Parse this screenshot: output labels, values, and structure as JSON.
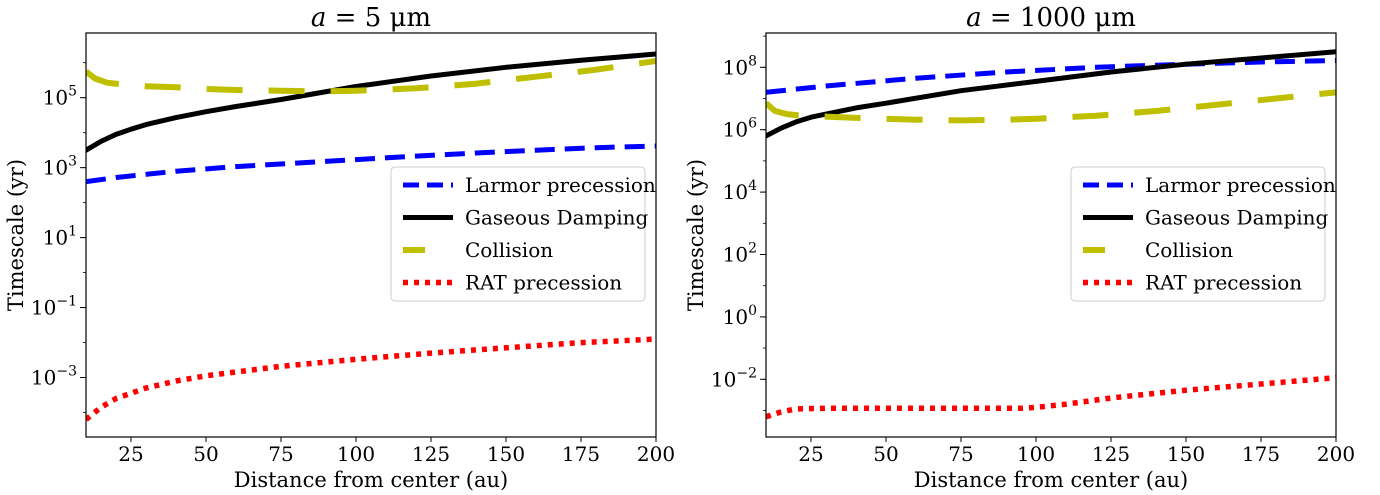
{
  "chart_data": [
    {
      "type": "line",
      "title": "a = 5 μm",
      "title_var": "a",
      "title_rest": " = 5 μm",
      "xlabel": "Distance from center (au)",
      "ylabel": "Timescale (yr)",
      "xlim": [
        10,
        200
      ],
      "ylog": true,
      "ylim_log10": [
        -4.7,
        6.85
      ],
      "xticks": [
        25,
        50,
        75,
        100,
        125,
        150,
        175,
        200
      ],
      "yticks": [
        {
          "mantissa": "10",
          "exp": "5",
          "log10": 5
        },
        {
          "mantissa": "10",
          "exp": "3",
          "log10": 3
        },
        {
          "mantissa": "10",
          "exp": "1",
          "log10": 1
        },
        {
          "mantissa": "10",
          "exp": "−1",
          "log10": -1
        },
        {
          "mantissa": "10",
          "exp": "−3",
          "log10": -3
        }
      ],
      "legend_position": "center-right",
      "series": [
        {
          "name": "Larmor precession",
          "color": "#0000ff",
          "style": "dashed",
          "x": [
            10,
            20,
            40,
            60,
            80,
            100,
            120,
            140,
            160,
            180,
            200
          ],
          "log10_y": [
            2.6,
            2.72,
            2.9,
            3.03,
            3.13,
            3.23,
            3.33,
            3.42,
            3.5,
            3.57,
            3.62
          ]
        },
        {
          "name": "Gaseous Damping",
          "color": "#000000",
          "style": "solid",
          "x": [
            10,
            15,
            20,
            25,
            30,
            40,
            50,
            60,
            75,
            100,
            125,
            150,
            175,
            200
          ],
          "log10_y": [
            3.5,
            3.75,
            3.95,
            4.1,
            4.23,
            4.43,
            4.6,
            4.75,
            4.95,
            5.32,
            5.62,
            5.87,
            6.07,
            6.25
          ]
        },
        {
          "name": "Collision",
          "color": "#bfbf00",
          "style": "longdash",
          "x": [
            10,
            13,
            17,
            22,
            30,
            40,
            50,
            60,
            75,
            90,
            100,
            120,
            140,
            160,
            180,
            200
          ],
          "log10_y": [
            5.75,
            5.55,
            5.43,
            5.38,
            5.33,
            5.3,
            5.25,
            5.22,
            5.2,
            5.18,
            5.2,
            5.27,
            5.4,
            5.6,
            5.8,
            6.05
          ]
        },
        {
          "name": "RAT precession",
          "color": "#ff0000",
          "style": "dotted",
          "x": [
            10,
            15,
            20,
            30,
            40,
            50,
            75,
            100,
            125,
            150,
            175,
            200
          ],
          "log10_y": [
            -4.2,
            -3.85,
            -3.6,
            -3.3,
            -3.1,
            -2.95,
            -2.68,
            -2.48,
            -2.3,
            -2.15,
            -2.0,
            -1.9
          ]
        }
      ]
    },
    {
      "type": "line",
      "title": "a = 1000 μm",
      "title_var": "a",
      "title_rest": " = 1000 μm",
      "xlabel": "Distance from center (au)",
      "ylabel": "Timescale (yr)",
      "xlim": [
        10,
        200
      ],
      "ylog": true,
      "ylim_log10": [
        -3.85,
        9.1
      ],
      "xticks": [
        25,
        50,
        75,
        100,
        125,
        150,
        175,
        200
      ],
      "yticks": [
        {
          "mantissa": "10",
          "exp": "8",
          "log10": 8
        },
        {
          "mantissa": "10",
          "exp": "6",
          "log10": 6
        },
        {
          "mantissa": "10",
          "exp": "4",
          "log10": 4
        },
        {
          "mantissa": "10",
          "exp": "2",
          "log10": 2
        },
        {
          "mantissa": "10",
          "exp": "0",
          "log10": 0
        },
        {
          "mantissa": "10",
          "exp": "−2",
          "log10": -2
        }
      ],
      "legend_position": "center-right",
      "series": [
        {
          "name": "Larmor precession",
          "color": "#0000ff",
          "style": "dashed",
          "x": [
            10,
            30,
            60,
            90,
            120,
            150,
            175,
            200
          ],
          "log10_y": [
            7.2,
            7.4,
            7.65,
            7.85,
            8.0,
            8.1,
            8.17,
            8.22
          ]
        },
        {
          "name": "Gaseous Damping",
          "color": "#000000",
          "style": "solid",
          "x": [
            10,
            15,
            20,
            25,
            30,
            40,
            50,
            75,
            100,
            125,
            150,
            175,
            200
          ],
          "log10_y": [
            5.8,
            6.05,
            6.25,
            6.4,
            6.5,
            6.7,
            6.85,
            7.25,
            7.55,
            7.85,
            8.1,
            8.3,
            8.5
          ]
        },
        {
          "name": "Collision",
          "color": "#bfbf00",
          "style": "longdash",
          "x": [
            10,
            13,
            17,
            22,
            30,
            40,
            50,
            60,
            75,
            90,
            100,
            120,
            140,
            160,
            180,
            200
          ],
          "log10_y": [
            6.85,
            6.6,
            6.5,
            6.45,
            6.42,
            6.38,
            6.35,
            6.32,
            6.3,
            6.32,
            6.35,
            6.45,
            6.6,
            6.8,
            7.0,
            7.2
          ]
        },
        {
          "name": "RAT precession",
          "color": "#ff0000",
          "style": "dotted",
          "x": [
            10,
            15,
            20,
            30,
            50,
            75,
            95,
            100,
            110,
            125,
            150,
            175,
            200
          ],
          "log10_y": [
            -3.2,
            -3.05,
            -2.95,
            -2.93,
            -2.93,
            -2.93,
            -2.93,
            -2.9,
            -2.8,
            -2.6,
            -2.35,
            -2.15,
            -1.95
          ]
        }
      ]
    }
  ]
}
